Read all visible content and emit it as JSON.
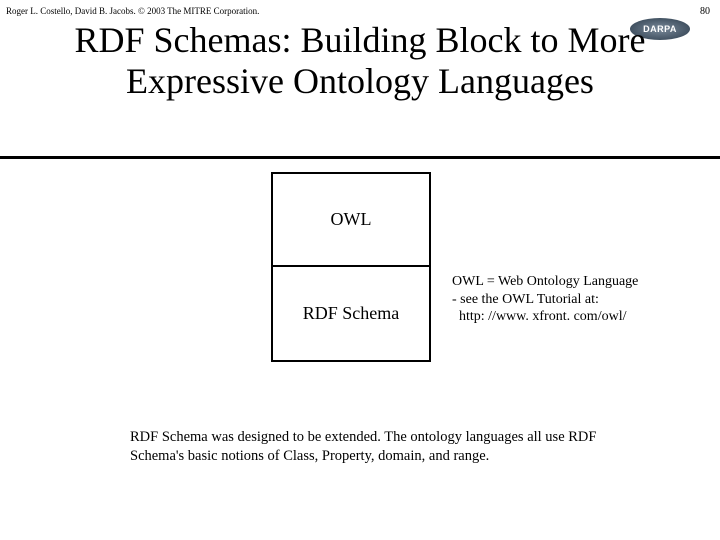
{
  "attribution": "Roger L. Costello, David B. Jacobs. © 2003 The MITRE Corporation.",
  "page_number": "80",
  "badge": {
    "label": "DARPA"
  },
  "title": "RDF Schemas: Building Block to More Expressive Ontology Languages",
  "stack": {
    "top_label": "OWL",
    "bottom_label": "RDF Schema"
  },
  "owl_note": {
    "line1": "OWL = Web Ontology Language",
    "line2": "- see the OWL Tutorial at:",
    "line3": "  http: //www. xfront. com/owl/"
  },
  "footer": "RDF Schema was designed to be extended.  The ontology languages all use RDF Schema's basic notions of Class, Property, domain, and range.",
  "colors": {
    "background": "#ffffff",
    "text": "#000000",
    "rule": "#000000",
    "badge_text": "#ffffff"
  }
}
